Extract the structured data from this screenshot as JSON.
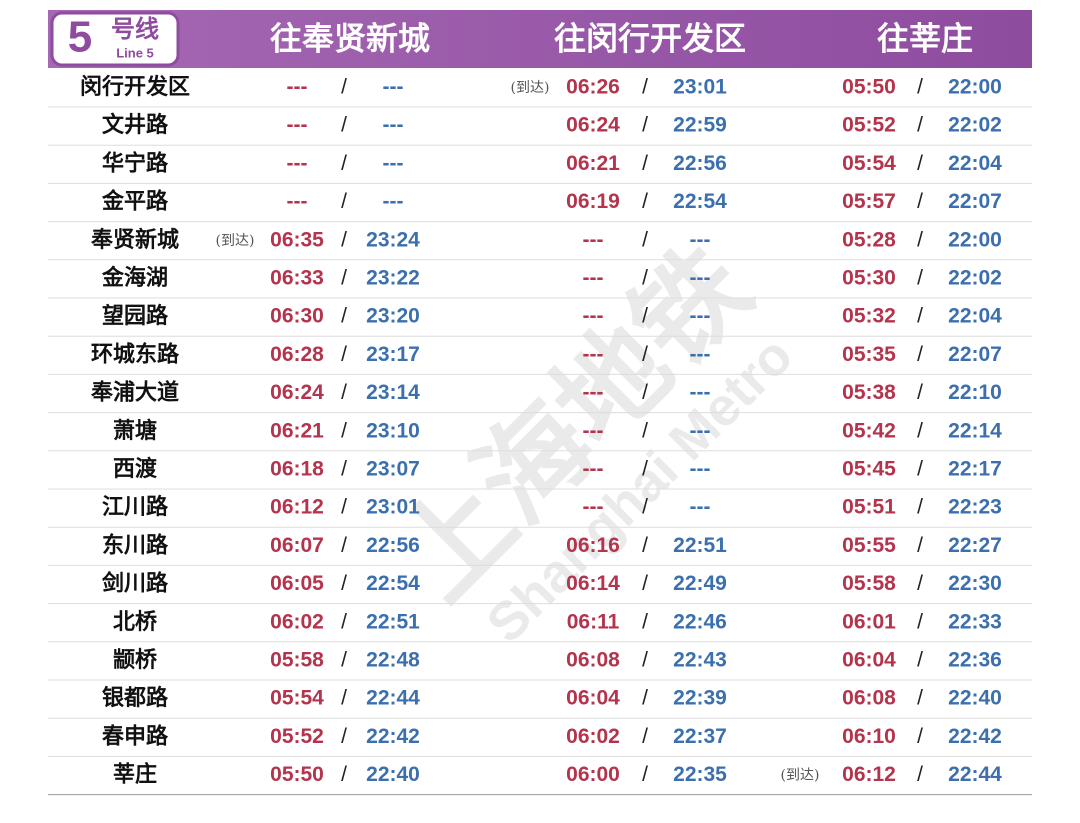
{
  "header": {
    "line_number": "5",
    "line_cn": "号线",
    "line_en": "Line 5",
    "columns": [
      "往奉贤新城",
      "往闵行开发区",
      "往莘庄"
    ]
  },
  "separator": "/",
  "watermark": {
    "cn": "上海地铁",
    "en": "Shanghai Metro"
  },
  "rows": [
    {
      "station": "闵行开发区",
      "cols": [
        {
          "first": "---",
          "last": "---"
        },
        {
          "note": "(到达)",
          "first": "06:26",
          "last": "23:01"
        },
        {
          "first": "05:50",
          "last": "22:00"
        }
      ]
    },
    {
      "station": "文井路",
      "cols": [
        {
          "first": "---",
          "last": "---"
        },
        {
          "first": "06:24",
          "last": "22:59"
        },
        {
          "first": "05:52",
          "last": "22:02"
        }
      ]
    },
    {
      "station": "华宁路",
      "cols": [
        {
          "first": "---",
          "last": "---"
        },
        {
          "first": "06:21",
          "last": "22:56"
        },
        {
          "first": "05:54",
          "last": "22:04"
        }
      ]
    },
    {
      "station": "金平路",
      "cols": [
        {
          "first": "---",
          "last": "---"
        },
        {
          "first": "06:19",
          "last": "22:54"
        },
        {
          "first": "05:57",
          "last": "22:07"
        }
      ]
    },
    {
      "station": "奉贤新城",
      "cols": [
        {
          "note": "(到达)",
          "first": "06:35",
          "last": "23:24"
        },
        {
          "first": "---",
          "last": "---"
        },
        {
          "first": "05:28",
          "last": "22:00"
        }
      ]
    },
    {
      "station": "金海湖",
      "cols": [
        {
          "first": "06:33",
          "last": "23:22"
        },
        {
          "first": "---",
          "last": "---"
        },
        {
          "first": "05:30",
          "last": "22:02"
        }
      ]
    },
    {
      "station": "望园路",
      "cols": [
        {
          "first": "06:30",
          "last": "23:20"
        },
        {
          "first": "---",
          "last": "---"
        },
        {
          "first": "05:32",
          "last": "22:04"
        }
      ]
    },
    {
      "station": "环城东路",
      "cols": [
        {
          "first": "06:28",
          "last": "23:17"
        },
        {
          "first": "---",
          "last": "---"
        },
        {
          "first": "05:35",
          "last": "22:07"
        }
      ]
    },
    {
      "station": "奉浦大道",
      "cols": [
        {
          "first": "06:24",
          "last": "23:14"
        },
        {
          "first": "---",
          "last": "---"
        },
        {
          "first": "05:38",
          "last": "22:10"
        }
      ]
    },
    {
      "station": "萧塘",
      "cols": [
        {
          "first": "06:21",
          "last": "23:10"
        },
        {
          "first": "---",
          "last": "---"
        },
        {
          "first": "05:42",
          "last": "22:14"
        }
      ]
    },
    {
      "station": "西渡",
      "cols": [
        {
          "first": "06:18",
          "last": "23:07"
        },
        {
          "first": "---",
          "last": "---"
        },
        {
          "first": "05:45",
          "last": "22:17"
        }
      ]
    },
    {
      "station": "江川路",
      "cols": [
        {
          "first": "06:12",
          "last": "23:01"
        },
        {
          "first": "---",
          "last": "---"
        },
        {
          "first": "05:51",
          "last": "22:23"
        }
      ]
    },
    {
      "station": "东川路",
      "cols": [
        {
          "first": "06:07",
          "last": "22:56"
        },
        {
          "first": "06:16",
          "last": "22:51"
        },
        {
          "first": "05:55",
          "last": "22:27"
        }
      ]
    },
    {
      "station": "剑川路",
      "cols": [
        {
          "first": "06:05",
          "last": "22:54"
        },
        {
          "first": "06:14",
          "last": "22:49"
        },
        {
          "first": "05:58",
          "last": "22:30"
        }
      ]
    },
    {
      "station": "北桥",
      "cols": [
        {
          "first": "06:02",
          "last": "22:51"
        },
        {
          "first": "06:11",
          "last": "22:46"
        },
        {
          "first": "06:01",
          "last": "22:33"
        }
      ]
    },
    {
      "station": "颛桥",
      "cols": [
        {
          "first": "05:58",
          "last": "22:48"
        },
        {
          "first": "06:08",
          "last": "22:43"
        },
        {
          "first": "06:04",
          "last": "22:36"
        }
      ]
    },
    {
      "station": "银都路",
      "cols": [
        {
          "first": "05:54",
          "last": "22:44"
        },
        {
          "first": "06:04",
          "last": "22:39"
        },
        {
          "first": "06:08",
          "last": "22:40"
        }
      ]
    },
    {
      "station": "春申路",
      "cols": [
        {
          "first": "05:52",
          "last": "22:42"
        },
        {
          "first": "06:02",
          "last": "22:37"
        },
        {
          "first": "06:10",
          "last": "22:42"
        }
      ]
    },
    {
      "station": "莘庄",
      "cols": [
        {
          "first": "05:50",
          "last": "22:40"
        },
        {
          "first": "06:00",
          "last": "22:35"
        },
        {
          "note": "(到达)",
          "first": "06:12",
          "last": "22:44"
        }
      ]
    }
  ]
}
